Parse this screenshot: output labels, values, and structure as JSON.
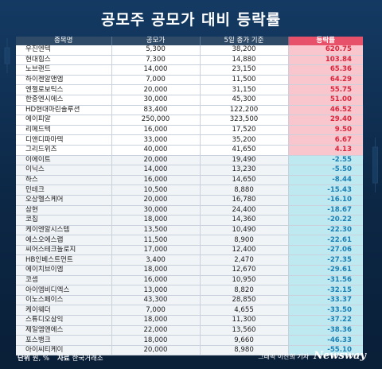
{
  "title": "공모주 공모가 대비 등락률",
  "colors": {
    "positive": "#d8263d",
    "negative": "#1b7fb3",
    "header_rate": "#e8516a",
    "background": "#0d2a4a"
  },
  "chart_data": {
    "type": "table",
    "columns": [
      "종목명",
      "공모가",
      "5일 종가 기준",
      "등락률"
    ],
    "rows": [
      [
        "우진엔텍",
        "5,300",
        "38,200",
        "620.75"
      ],
      [
        "현대힘스",
        "7,300",
        "14,880",
        "103.84"
      ],
      [
        "노브랜드",
        "14,000",
        "23,150",
        "65.36"
      ],
      [
        "하이젠알앤엠",
        "7,000",
        "11,500",
        "64.29"
      ],
      [
        "엔젤로보틱스",
        "20,000",
        "31,150",
        "55.75"
      ],
      [
        "한중엔시에스",
        "30,000",
        "45,300",
        "51.00"
      ],
      [
        "HD현대마린솔루션",
        "83,400",
        "122,200",
        "46.52"
      ],
      [
        "에이피알",
        "250,000",
        "323,500",
        "29.40"
      ],
      [
        "리메드텍",
        "16,000",
        "17,520",
        "9.50"
      ],
      [
        "디앤디파마텍",
        "33,000",
        "35,200",
        "6.67"
      ],
      [
        "그리드위즈",
        "40,000",
        "41,650",
        "4.13"
      ],
      [
        "이에이트",
        "20,000",
        "19,490",
        "-2.55"
      ],
      [
        "이닉스",
        "14,000",
        "13,230",
        "-5.50"
      ],
      [
        "하스",
        "16,000",
        "14,650",
        "-8.44"
      ],
      [
        "민테크",
        "10,500",
        "8,880",
        "-15.43"
      ],
      [
        "오상헬스케어",
        "20,000",
        "16,780",
        "-16.10"
      ],
      [
        "삼현",
        "30,000",
        "24,400",
        "-18.67"
      ],
      [
        "코칩",
        "18,000",
        "14,360",
        "-20.22"
      ],
      [
        "케이엔알시스템",
        "13,500",
        "10,490",
        "-22.30"
      ],
      [
        "에스오에스랩",
        "11,500",
        "8,900",
        "-22.61"
      ],
      [
        "씨어스테크놀로지",
        "17,000",
        "12,400",
        "-27.06"
      ],
      [
        "HB인베스트먼트",
        "3,400",
        "2,470",
        "-27.35"
      ],
      [
        "에이치브이엠",
        "18,000",
        "12,670",
        "-29.61"
      ],
      [
        "코셈",
        "16,000",
        "10,950",
        "-31.56"
      ],
      [
        "아이엠비디엑스",
        "13,000",
        "8,820",
        "-32.15"
      ],
      [
        "이노스페이스",
        "43,300",
        "28,850",
        "-33.37"
      ],
      [
        "케이웨더",
        "7,000",
        "4,655",
        "-33.50"
      ],
      [
        "스튜디오삼익",
        "18,000",
        "11,300",
        "-37.22"
      ],
      [
        "제일엠앤에스",
        "22,000",
        "13,560",
        "-38.36"
      ],
      [
        "포스뱅크",
        "18,000",
        "9,660",
        "-46.33"
      ],
      [
        "아이씨티케이",
        "20,000",
        "8,980",
        "-55.10"
      ]
    ]
  },
  "footer": {
    "unit_label": "단위",
    "unit_value": "원, %",
    "source_label": "자료",
    "source_value": "한국거래소",
    "credit": "그래픽 이찬희 기자",
    "brand": "Newsway"
  }
}
